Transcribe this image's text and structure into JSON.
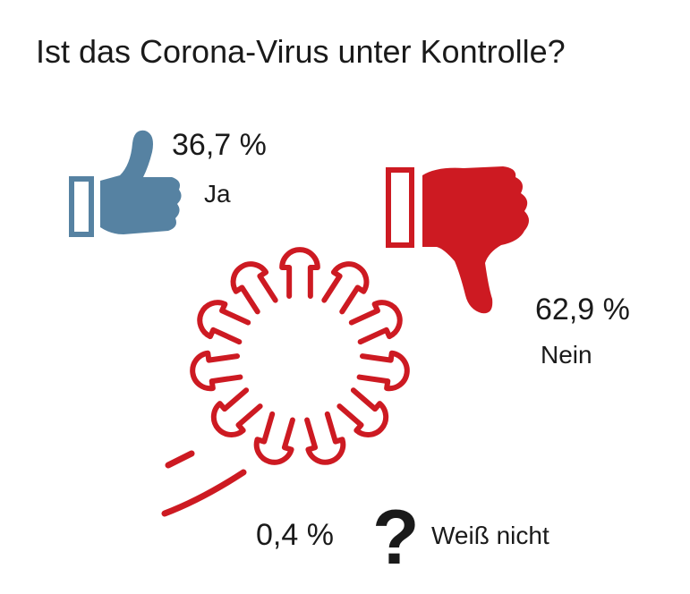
{
  "chart_data": {
    "type": "pie",
    "title": "Ist das Corona-Virus unter Kontrolle?",
    "slices": [
      {
        "label": "Ja",
        "value": 36.7,
        "value_text": "36,7 %",
        "color": "#5682a2",
        "icon": "thumbs-up-icon"
      },
      {
        "label": "Nein",
        "value": 62.9,
        "value_text": "62,9 %",
        "color": "#cd1a22",
        "icon": "thumbs-down-icon"
      },
      {
        "label": "Weiß nicht",
        "value": 0.4,
        "value_text": "0,4 %",
        "color": "#111111",
        "icon": "question-mark-icon"
      }
    ]
  },
  "question_glyph": "?",
  "decoration": {
    "virus_icon": "virus-icon",
    "virus_color": "#cd1a22"
  }
}
